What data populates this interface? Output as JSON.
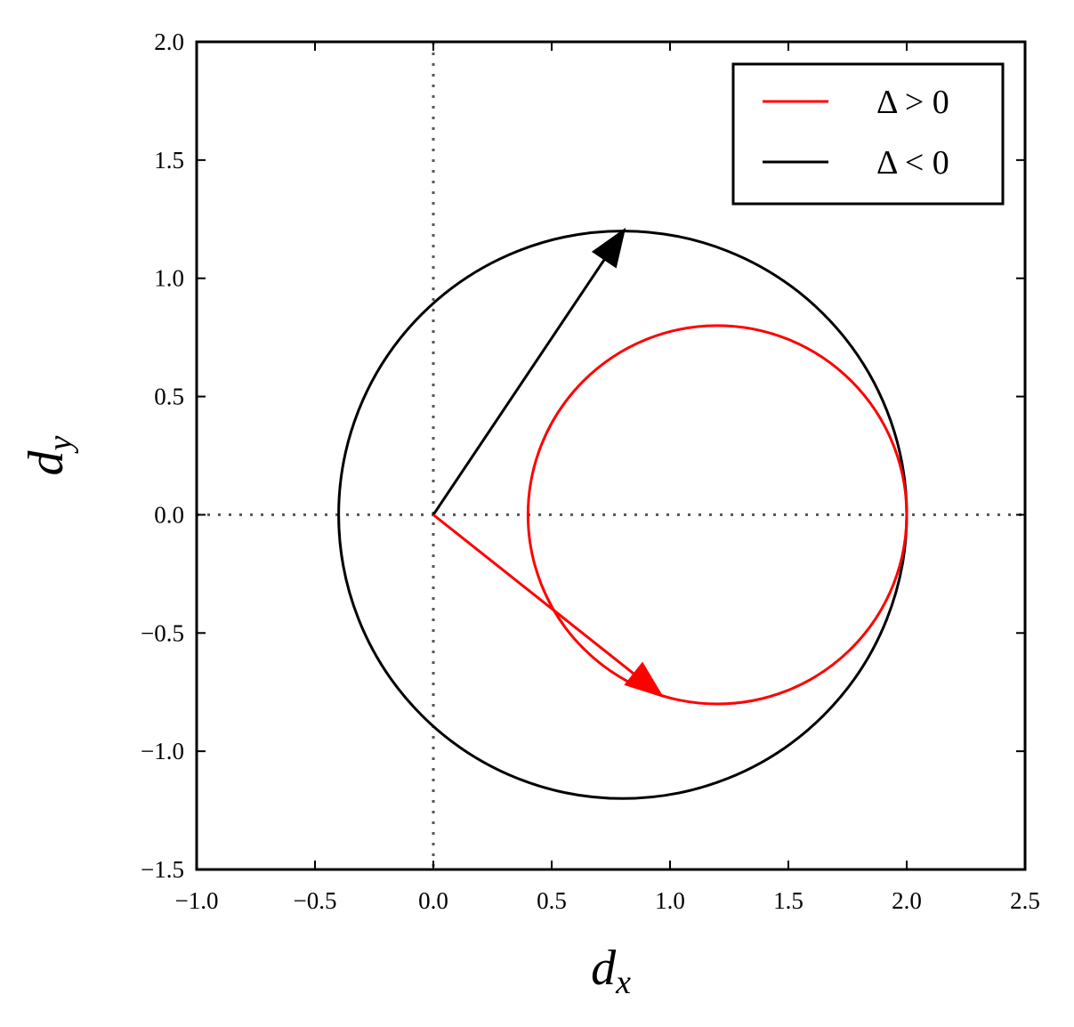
{
  "chart_data": {
    "type": "line",
    "xlabel": "d",
    "xlabel_sub": "x",
    "ylabel": "d",
    "ylabel_sub": "y",
    "xlim": [
      -1.0,
      2.5
    ],
    "ylim": [
      -1.5,
      2.0
    ],
    "xticks": [
      -1.0,
      -0.5,
      0.0,
      0.5,
      1.0,
      1.5,
      2.0,
      2.5
    ],
    "yticks": [
      -1.5,
      -1.0,
      -0.5,
      0.0,
      0.5,
      1.0,
      1.5,
      2.0
    ],
    "xtick_labels": [
      "−1.0",
      "−0.5",
      "0.0",
      "0.5",
      "1.0",
      "1.5",
      "2.0",
      "2.5"
    ],
    "ytick_labels": [
      "−1.5",
      "−1.0",
      "−0.5",
      "0.0",
      "0.5",
      "1.0",
      "1.5",
      "2.0"
    ],
    "grid": false,
    "legend_position": "top-right",
    "reference_lines": [
      {
        "orientation": "vertical",
        "x": 0.0,
        "style": "dotted",
        "color": "#555555"
      },
      {
        "orientation": "horizontal",
        "y": 0.0,
        "style": "dotted",
        "color": "#555555"
      }
    ],
    "series": [
      {
        "name": "Δ > 0",
        "color": "#ff0000",
        "circle": {
          "center": [
            1.2,
            0.0
          ],
          "radius": 0.8
        },
        "arrow": {
          "from": [
            0.0,
            0.0
          ],
          "to": [
            0.97,
            -0.77
          ]
        }
      },
      {
        "name": "Δ < 0",
        "color": "#000000",
        "circle": {
          "center": [
            0.8,
            0.0
          ],
          "radius": 1.2
        },
        "arrow": {
          "from": [
            0.0,
            0.0
          ],
          "to": [
            0.81,
            1.21
          ]
        }
      }
    ]
  }
}
